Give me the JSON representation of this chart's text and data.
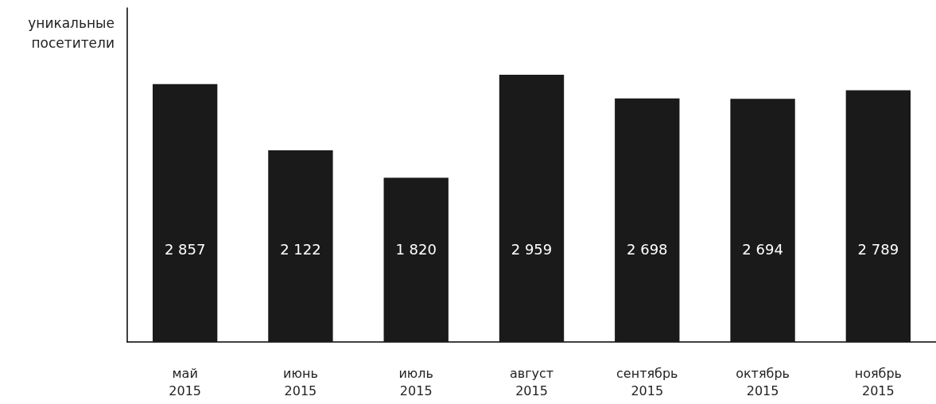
{
  "chart_data": {
    "type": "bar",
    "ylabel": "уникальные\nпосетители",
    "categories": [
      "май\n2015",
      "июнь\n2015",
      "июль\n2015",
      "август\n2015",
      "сентябрь\n2015",
      "октябрь\n2015",
      "ноябрь\n2015"
    ],
    "values": [
      2857,
      2122,
      1820,
      2959,
      2698,
      2694,
      2789
    ],
    "value_labels": [
      "2 857",
      "2 122",
      "1 820",
      "2 959",
      "2 698",
      "2 694",
      "2 789"
    ],
    "color": "#1a1a1a",
    "ylim": [
      0,
      3700
    ]
  }
}
